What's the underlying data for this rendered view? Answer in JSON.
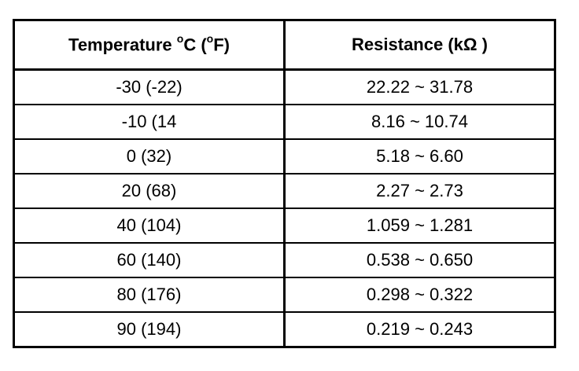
{
  "table": {
    "headers": {
      "temperature_prefix": "Temperature ",
      "temperature_deg1": "o",
      "temperature_mid": "C (",
      "temperature_deg2": "o",
      "temperature_suffix": "F)",
      "resistance": "Resistance (kΩ )"
    },
    "rows": [
      {
        "temperature": "-30  (-22)",
        "resistance": "22.22 ~ 31.78"
      },
      {
        "temperature": "-10  (14",
        "resistance": "8.16 ~ 10.74"
      },
      {
        "temperature": "0  (32)",
        "resistance": "5.18 ~ 6.60"
      },
      {
        "temperature": "20  (68)",
        "resistance": "2.27 ~ 2.73"
      },
      {
        "temperature": "40  (104)",
        "resistance": "1.059 ~ 1.281"
      },
      {
        "temperature": "60  (140)",
        "resistance": "0.538 ~ 0.650"
      },
      {
        "temperature": "80  (176)",
        "resistance": "0.298 ~ 0.322"
      },
      {
        "temperature": "90  (194)",
        "resistance": "0.219 ~ 0.243"
      }
    ]
  }
}
